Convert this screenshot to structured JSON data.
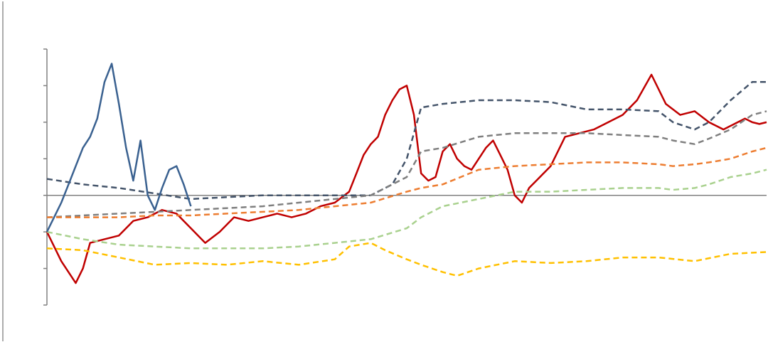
{
  "chart_data": {
    "type": "line",
    "title": "",
    "xlabel": "",
    "ylabel": "",
    "xlim": [
      0,
      100
    ],
    "ylim": [
      -3,
      4
    ],
    "baseline": 0,
    "grid": false,
    "legend": "none",
    "tick_labels": [],
    "series": [
      {
        "color": "#c00000",
        "style": "solid",
        "width": 2.5,
        "x": [
          0,
          2,
          4,
          5,
          6,
          8,
          10,
          12,
          14,
          16,
          18,
          20,
          22,
          24,
          26,
          28,
          30,
          32,
          34,
          36,
          38,
          40,
          42,
          43,
          44,
          45,
          46,
          47,
          48,
          49,
          50,
          51,
          52,
          53,
          54,
          55,
          56,
          57,
          58,
          59,
          60,
          61,
          62,
          63,
          64,
          65,
          66,
          67,
          68,
          70,
          72,
          74,
          76,
          78,
          80,
          82,
          84,
          86,
          88,
          90,
          92,
          94,
          95,
          96,
          97,
          98,
          99,
          100
        ],
        "y": [
          -1.0,
          -1.8,
          -2.4,
          -2.0,
          -1.3,
          -1.2,
          -1.1,
          -0.7,
          -0.6,
          -0.4,
          -0.5,
          -0.9,
          -1.3,
          -1.0,
          -0.6,
          -0.7,
          -0.6,
          -0.5,
          -0.6,
          -0.5,
          -0.3,
          -0.2,
          0.1,
          0.6,
          1.1,
          1.4,
          1.6,
          2.2,
          2.6,
          2.9,
          3.0,
          2.2,
          0.6,
          0.4,
          0.5,
          1.2,
          1.4,
          1.0,
          0.8,
          0.7,
          1.0,
          1.3,
          1.5,
          1.1,
          0.7,
          0.0,
          -0.2,
          0.2,
          0.4,
          0.8,
          1.6,
          1.7,
          1.8,
          2.0,
          2.2,
          2.6,
          3.3,
          2.5,
          2.2,
          2.3,
          2.0,
          1.8,
          1.9,
          2.0,
          2.1,
          2.0,
          1.95,
          2.0
        ]
      },
      {
        "color": "#44546a",
        "style": "dashed",
        "width": 2.5,
        "x": [
          0,
          5,
          10,
          15,
          20,
          25,
          30,
          35,
          40,
          45,
          48,
          50,
          52,
          55,
          60,
          65,
          70,
          75,
          80,
          85,
          87,
          90,
          92,
          95,
          98,
          100
        ],
        "y": [
          0.45,
          0.3,
          0.2,
          0.05,
          -0.1,
          -0.05,
          0.0,
          0.0,
          0.0,
          0.0,
          0.3,
          1.0,
          2.4,
          2.5,
          2.6,
          2.6,
          2.55,
          2.35,
          2.35,
          2.3,
          2.0,
          1.8,
          2.0,
          2.6,
          3.1,
          3.1
        ]
      },
      {
        "color": "#7f7f7f",
        "style": "dashed",
        "width": 2.5,
        "x": [
          0,
          5,
          10,
          15,
          20,
          25,
          30,
          35,
          40,
          45,
          50,
          52,
          55,
          60,
          65,
          70,
          75,
          80,
          85,
          87,
          90,
          92,
          95,
          98,
          100
        ],
        "y": [
          -0.6,
          -0.55,
          -0.5,
          -0.45,
          -0.4,
          -0.35,
          -0.3,
          -0.2,
          -0.1,
          0.0,
          0.5,
          1.2,
          1.3,
          1.6,
          1.7,
          1.7,
          1.7,
          1.65,
          1.6,
          1.5,
          1.4,
          1.55,
          1.8,
          2.2,
          2.3
        ]
      },
      {
        "color": "#ed7d31",
        "style": "dashed",
        "width": 2.5,
        "x": [
          0,
          5,
          10,
          15,
          20,
          25,
          30,
          35,
          40,
          45,
          50,
          52,
          55,
          60,
          65,
          70,
          75,
          80,
          85,
          87,
          90,
          92,
          95,
          98,
          100
        ],
        "y": [
          -0.6,
          -0.6,
          -0.6,
          -0.55,
          -0.55,
          -0.5,
          -0.45,
          -0.4,
          -0.3,
          -0.2,
          0.1,
          0.2,
          0.3,
          0.7,
          0.8,
          0.85,
          0.9,
          0.9,
          0.85,
          0.8,
          0.85,
          0.9,
          1.0,
          1.2,
          1.3
        ]
      },
      {
        "color": "#a9d18e",
        "style": "dashed",
        "width": 2.5,
        "x": [
          0,
          5,
          10,
          15,
          20,
          25,
          30,
          35,
          40,
          45,
          50,
          52,
          55,
          60,
          65,
          70,
          75,
          80,
          85,
          87,
          90,
          92,
          95,
          98,
          100
        ],
        "y": [
          -1.0,
          -1.2,
          -1.35,
          -1.4,
          -1.45,
          -1.45,
          -1.45,
          -1.4,
          -1.3,
          -1.2,
          -0.9,
          -0.6,
          -0.3,
          -0.1,
          0.1,
          0.1,
          0.15,
          0.2,
          0.2,
          0.15,
          0.2,
          0.3,
          0.5,
          0.6,
          0.7
        ]
      },
      {
        "color": "#ffc000",
        "style": "dashed",
        "width": 2.5,
        "x": [
          0,
          5,
          10,
          15,
          20,
          25,
          30,
          35,
          40,
          42,
          45,
          47,
          50,
          52,
          55,
          57,
          60,
          65,
          70,
          75,
          80,
          85,
          90,
          95,
          100
        ],
        "y": [
          -1.45,
          -1.5,
          -1.7,
          -1.9,
          -1.85,
          -1.9,
          -1.8,
          -1.9,
          -1.75,
          -1.4,
          -1.3,
          -1.5,
          -1.75,
          -1.9,
          -2.1,
          -2.2,
          -2.0,
          -1.8,
          -1.85,
          -1.8,
          -1.7,
          -1.7,
          -1.8,
          -1.6,
          -1.55
        ]
      },
      {
        "color": "#3a6190",
        "style": "solid",
        "width": 2.5,
        "x": [
          0,
          1,
          2,
          3,
          4,
          5,
          6,
          7,
          8,
          9,
          10,
          11,
          12,
          13,
          14,
          15,
          16,
          17,
          18,
          19,
          20
        ],
        "y": [
          -1.0,
          -0.6,
          -0.2,
          0.3,
          0.8,
          1.3,
          1.6,
          2.1,
          3.1,
          3.6,
          2.5,
          1.3,
          0.4,
          1.5,
          0.0,
          -0.4,
          0.2,
          0.7,
          0.8,
          0.3,
          -0.3
        ]
      }
    ]
  }
}
